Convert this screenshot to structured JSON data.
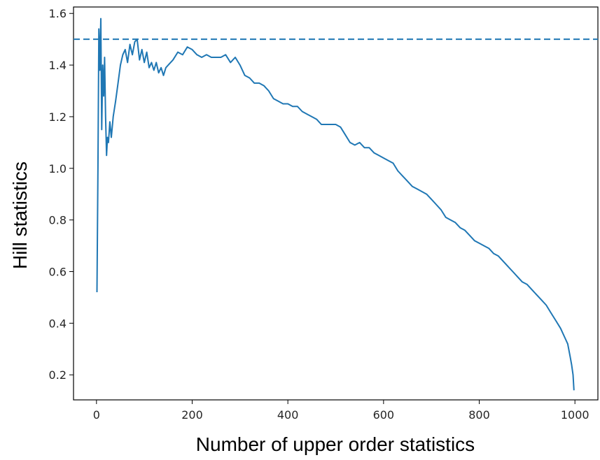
{
  "chart_data": {
    "type": "line",
    "xlabel": "Number of upper order statistics",
    "ylabel": "Hill statistics",
    "xlim": [
      -48,
      1048
    ],
    "ylim": [
      0.103,
      1.625
    ],
    "grid": false,
    "legend": "none",
    "xticks": [
      0,
      200,
      400,
      600,
      800,
      1000
    ],
    "xtick_labels": [
      "0",
      "200",
      "400",
      "600",
      "800",
      "1000"
    ],
    "yticks": [
      0.2,
      0.4,
      0.6,
      0.8,
      1.0,
      1.2,
      1.4,
      1.6
    ],
    "ytick_labels": [
      "0.2",
      "0.4",
      "0.6",
      "0.8",
      "1.0",
      "1.2",
      "1.4",
      "1.6"
    ],
    "reference_line": {
      "y": 1.5,
      "style": "dashed",
      "color": "#1f77b4"
    },
    "series": [
      {
        "color": "#1f77b4",
        "x": [
          1,
          3,
          5,
          7,
          9,
          11,
          13,
          15,
          17,
          19,
          21,
          23,
          25,
          28,
          31,
          35,
          40,
          45,
          50,
          55,
          60,
          65,
          70,
          75,
          80,
          85,
          90,
          95,
          100,
          105,
          110,
          115,
          120,
          125,
          130,
          135,
          140,
          145,
          150,
          160,
          170,
          180,
          190,
          200,
          210,
          220,
          230,
          240,
          250,
          260,
          270,
          280,
          290,
          300,
          310,
          320,
          330,
          340,
          350,
          360,
          370,
          380,
          390,
          400,
          410,
          420,
          430,
          440,
          450,
          460,
          470,
          480,
          490,
          500,
          510,
          520,
          530,
          540,
          550,
          560,
          570,
          580,
          590,
          600,
          610,
          620,
          630,
          640,
          650,
          660,
          670,
          680,
          690,
          700,
          710,
          720,
          730,
          740,
          750,
          760,
          770,
          780,
          790,
          800,
          810,
          820,
          830,
          840,
          850,
          860,
          870,
          880,
          890,
          900,
          910,
          920,
          930,
          940,
          950,
          960,
          970,
          980,
          985,
          990,
          993,
          996,
          998
        ],
        "y": [
          0.52,
          1.0,
          1.54,
          1.38,
          1.58,
          1.15,
          1.4,
          1.28,
          1.43,
          1.2,
          1.05,
          1.12,
          1.1,
          1.18,
          1.12,
          1.2,
          1.26,
          1.33,
          1.4,
          1.44,
          1.46,
          1.41,
          1.48,
          1.44,
          1.49,
          1.5,
          1.42,
          1.46,
          1.41,
          1.45,
          1.39,
          1.41,
          1.38,
          1.41,
          1.37,
          1.39,
          1.36,
          1.39,
          1.4,
          1.42,
          1.45,
          1.44,
          1.47,
          1.46,
          1.44,
          1.43,
          1.44,
          1.43,
          1.43,
          1.43,
          1.44,
          1.41,
          1.43,
          1.4,
          1.36,
          1.35,
          1.33,
          1.33,
          1.32,
          1.3,
          1.27,
          1.26,
          1.25,
          1.25,
          1.24,
          1.24,
          1.22,
          1.21,
          1.2,
          1.19,
          1.17,
          1.17,
          1.17,
          1.17,
          1.16,
          1.13,
          1.1,
          1.09,
          1.1,
          1.08,
          1.08,
          1.06,
          1.05,
          1.04,
          1.03,
          1.02,
          0.99,
          0.97,
          0.95,
          0.93,
          0.92,
          0.91,
          0.9,
          0.88,
          0.86,
          0.84,
          0.81,
          0.8,
          0.79,
          0.77,
          0.76,
          0.74,
          0.72,
          0.71,
          0.7,
          0.69,
          0.67,
          0.66,
          0.64,
          0.62,
          0.6,
          0.58,
          0.56,
          0.55,
          0.53,
          0.51,
          0.49,
          0.47,
          0.44,
          0.41,
          0.38,
          0.34,
          0.32,
          0.27,
          0.24,
          0.2,
          0.14
        ]
      }
    ]
  }
}
